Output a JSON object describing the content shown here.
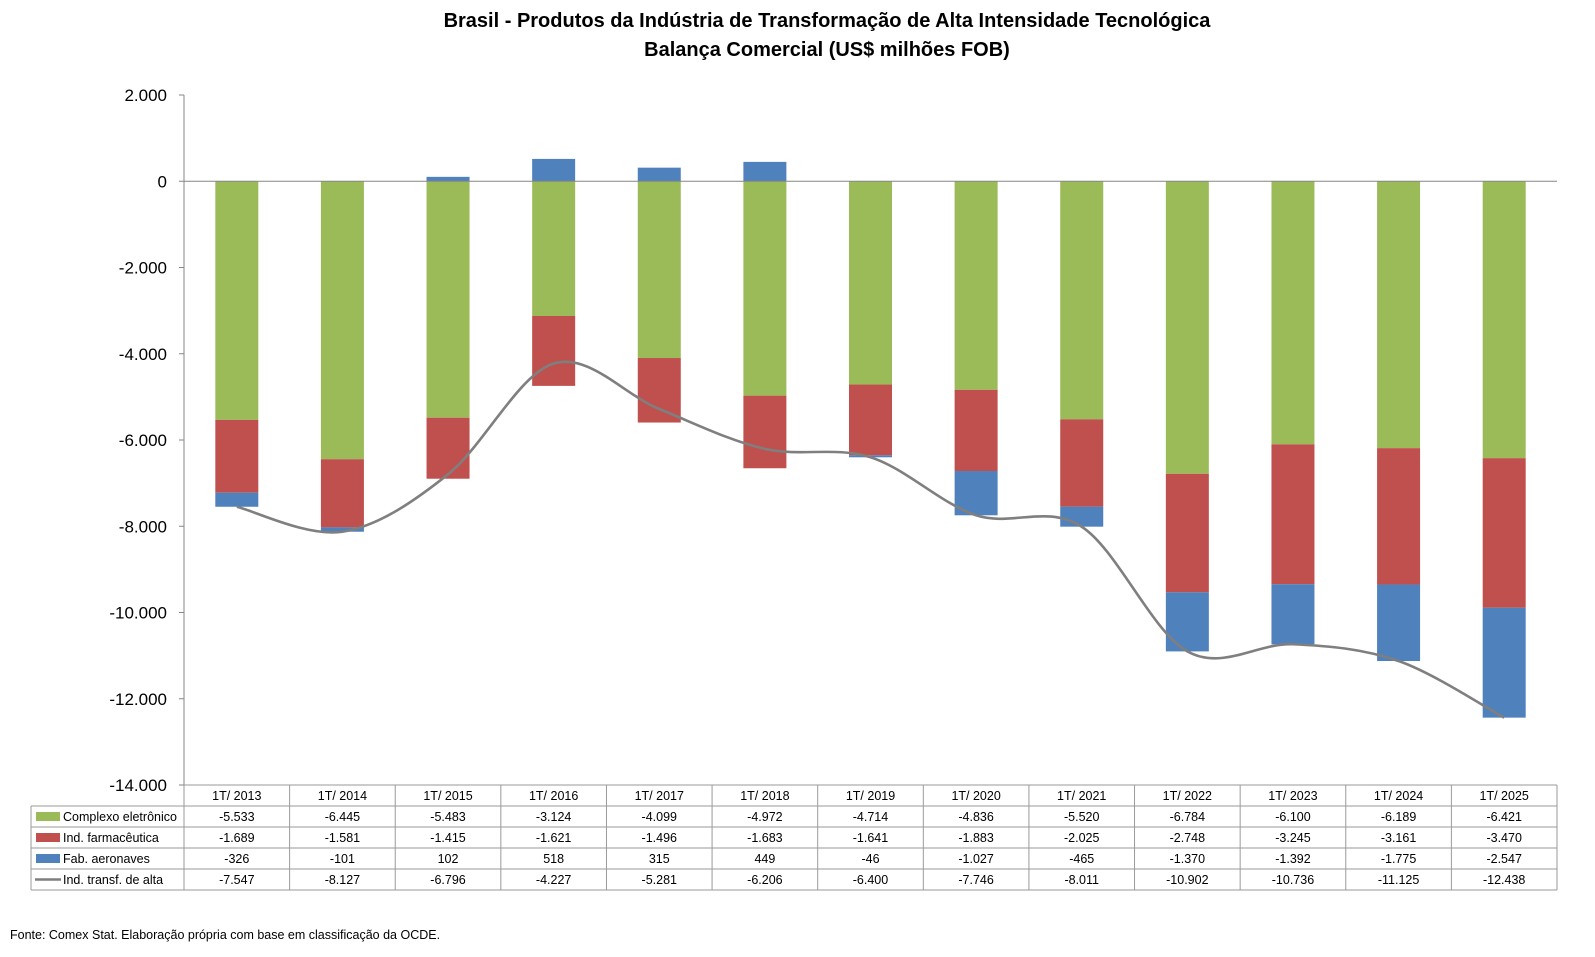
{
  "chart_data": {
    "type": "bar",
    "stacked": true,
    "title": "Brasil - Produtos da Indústria de Transformação de Alta Intensidade Tecnológica",
    "subtitle": "Balança Comercial (US$ milhões FOB)",
    "categories": [
      "1T/ 2013",
      "1T/ 2014",
      "1T/ 2015",
      "1T/ 2016",
      "1T/ 2017",
      "1T/ 2018",
      "1T/ 2019",
      "1T/ 2020",
      "1T/ 2021",
      "1T/ 2022",
      "1T/ 2023",
      "1T/ 2024",
      "1T/ 2025"
    ],
    "ylim": [
      -14000,
      2000
    ],
    "yticks": [
      2000,
      0,
      -2000,
      -4000,
      -6000,
      -8000,
      -10000,
      -12000,
      -14000
    ],
    "ytick_labels": [
      "2.000",
      "0",
      "-2.000",
      "-4.000",
      "-6.000",
      "-8.000",
      "-10.000",
      "-12.000",
      "-14.000"
    ],
    "grid": false,
    "legend": "data-table-left",
    "series": [
      {
        "name": "Complexo eletrônico",
        "kind": "bar",
        "color": "#9BBB59",
        "values": [
          -5533,
          -6445,
          -5483,
          -3124,
          -4099,
          -4972,
          -4714,
          -4836,
          -5520,
          -6784,
          -6100,
          -6189,
          -6421
        ],
        "labels": [
          "-5.533",
          "-6.445",
          "-5.483",
          "-3.124",
          "-4.099",
          "-4.972",
          "-4.714",
          "-4.836",
          "-5.520",
          "-6.784",
          "-6.100",
          "-6.189",
          "-6.421"
        ]
      },
      {
        "name": "Ind. farmacêutica",
        "kind": "bar",
        "color": "#C0504D",
        "values": [
          -1689,
          -1581,
          -1415,
          -1621,
          -1496,
          -1683,
          -1641,
          -1883,
          -2025,
          -2748,
          -3245,
          -3161,
          -3470
        ],
        "labels": [
          "-1.689",
          "-1.581",
          "-1.415",
          "-1.621",
          "-1.496",
          "-1.683",
          "-1.641",
          "-1.883",
          "-2.025",
          "-2.748",
          "-3.245",
          "-3.161",
          "-3.470"
        ]
      },
      {
        "name": "Fab. aeronaves",
        "kind": "bar",
        "color": "#4F81BD",
        "values": [
          -326,
          -101,
          102,
          518,
          315,
          449,
          -46,
          -1027,
          -465,
          -1370,
          -1392,
          -1775,
          -2547
        ],
        "labels": [
          "-326",
          "-101",
          "102",
          "518",
          "315",
          "449",
          "-46",
          "-1.027",
          "-465",
          "-1.370",
          "-1.392",
          "-1.775",
          "-2.547"
        ]
      },
      {
        "name": "Ind. transf. de alta",
        "kind": "line",
        "color": "#7F7F7F",
        "values": [
          -7547,
          -8127,
          -6796,
          -4227,
          -5281,
          -6206,
          -6400,
          -7746,
          -8011,
          -10902,
          -10736,
          -11125,
          -12438
        ],
        "labels": [
          "-7.547",
          "-8.127",
          "-6.796",
          "-4.227",
          "-5.281",
          "-6.206",
          "-6.400",
          "-7.746",
          "-8.011",
          "-10.902",
          "-10.736",
          "-11.125",
          "-12.438"
        ]
      }
    ]
  },
  "footer": "Fonte:  Comex Stat. Elaboração própria com base em classificação da OCDE."
}
